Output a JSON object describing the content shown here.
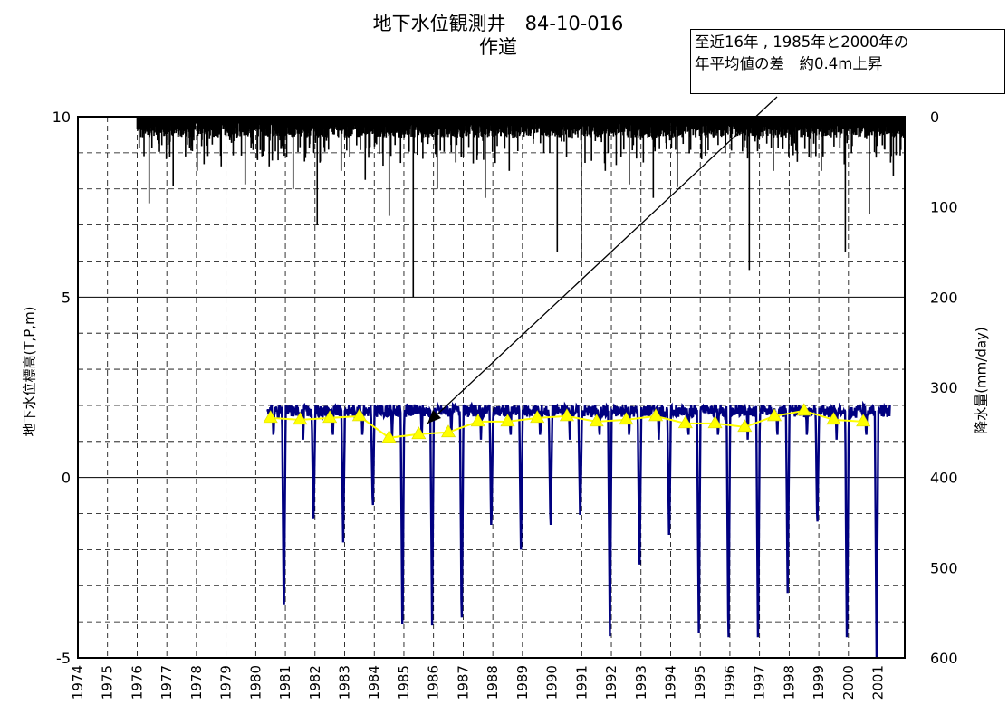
{
  "chart_data": {
    "type": "line",
    "title": "地下水位観測井　84-10-016",
    "subtitle": "作道",
    "annotation": {
      "line1": "至近16年 , 1985年と2000年の",
      "line2": "年平均値の差　約0.4m上昇"
    },
    "ylabel": "地下水位標高(T,P,m)",
    "ylabel_right": "降水量(mm/day)",
    "ylim": [
      -5,
      10
    ],
    "ylim_right": [
      0,
      600
    ],
    "right_axis_inverted": true,
    "y_ticks": [
      10,
      5,
      0,
      -5
    ],
    "y_ticks_right": [
      0,
      100,
      200,
      300,
      400,
      500,
      600
    ],
    "x_ticks": [
      "1974",
      "1975",
      "1976",
      "1977",
      "1978",
      "1979",
      "1980",
      "1981",
      "1982",
      "1983",
      "1984",
      "1985",
      "1986",
      "1987",
      "1988",
      "1989",
      "1990",
      "1991",
      "1992",
      "1993",
      "1994",
      "1995",
      "1996",
      "1997",
      "1998",
      "1999",
      "2000",
      "2001"
    ],
    "xlim": [
      1974,
      2001.9
    ],
    "grid": true,
    "series": [
      {
        "kind": "annual-mean",
        "x": [
          1980.5,
          1981.5,
          1982.5,
          1983.5,
          1984.5,
          1985.5,
          1986.5,
          1987.5,
          1988.5,
          1989.5,
          1990.5,
          1991.5,
          1992.5,
          1993.5,
          1994.5,
          1995.5,
          1996.5,
          1997.5,
          1998.5,
          1999.5,
          2000.5
        ],
        "values": [
          1.65,
          1.6,
          1.65,
          1.7,
          1.1,
          1.2,
          1.25,
          1.55,
          1.55,
          1.65,
          1.7,
          1.55,
          1.6,
          1.7,
          1.5,
          1.5,
          1.4,
          1.7,
          1.85,
          1.6,
          1.55
        ],
        "color": "#ffff00",
        "marker": "triangle"
      },
      {
        "kind": "daily-water-level",
        "color": "#000080",
        "x_range": [
          1980.4,
          2001.4
        ],
        "baseline": 1.85,
        "drawdown_minima": [
          -4.0,
          -1.4,
          -1.8,
          -1.0,
          -4.6,
          -4.1,
          -4.4,
          -1.6,
          -2.0,
          -1.6,
          -1.3,
          -4.4,
          -2.8,
          -1.9,
          -4.3,
          -5.0,
          -5.0,
          -3.2,
          -1.5,
          -5.0,
          -5.0
        ]
      },
      {
        "kind": "daily-precipitation",
        "color": "#000000",
        "x_range": [
          1976,
          2001.9
        ],
        "axis": "right",
        "peaks_mm": [
          96,
          77,
          60,
          55,
          75,
          55,
          80,
          120,
          60,
          70,
          110,
          200,
          80,
          45,
          90,
          60,
          30,
          150,
          160,
          60,
          75,
          90,
          78,
          45,
          40,
          170,
          60,
          50,
          60,
          150,
          108,
          66
        ]
      }
    ]
  }
}
